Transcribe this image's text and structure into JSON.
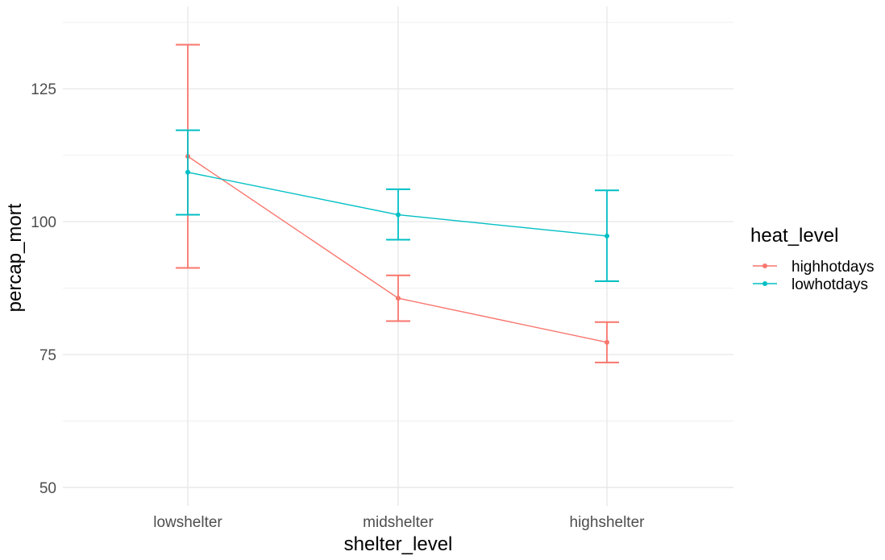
{
  "chart_data": {
    "type": "line",
    "title": "",
    "xlabel": "shelter_level",
    "ylabel": "percap_mort",
    "categories": [
      "lowshelter",
      "midshelter",
      "highshelter"
    ],
    "ylim": [
      46.5,
      140.5
    ],
    "yticks": [
      50,
      75,
      100,
      125
    ],
    "grid": true,
    "legend": {
      "title": "heat_level",
      "position": "right",
      "entries": [
        "highhotdays",
        "lowhotdays"
      ]
    },
    "series": [
      {
        "name": "highhotdays",
        "color": "#F8766D",
        "values": [
          112.3,
          85.6,
          77.3
        ],
        "error_low": [
          91.3,
          81.3,
          73.5
        ],
        "error_high": [
          133.3,
          89.9,
          81.1
        ]
      },
      {
        "name": "lowhotdays",
        "color": "#00BFC4",
        "values": [
          109.3,
          101.3,
          97.3
        ],
        "error_low": [
          101.3,
          96.6,
          88.8
        ],
        "error_high": [
          117.2,
          106.1,
          105.9
        ]
      }
    ]
  }
}
